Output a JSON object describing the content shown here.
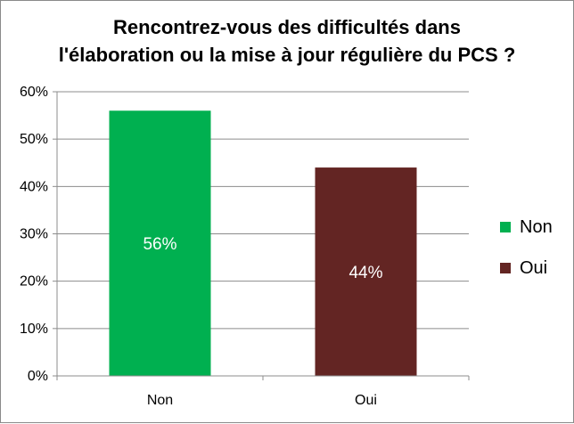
{
  "chart_data": {
    "type": "bar",
    "title": "Rencontrez-vous des difficultés dans\nl'élaboration ou la mise à jour régulière du PCS ?",
    "categories": [
      "Non",
      "Oui"
    ],
    "values": [
      56,
      44
    ],
    "data_labels": [
      "56%",
      "44%"
    ],
    "colors": [
      "#00b050",
      "#632523"
    ],
    "ylim": [
      0,
      60
    ],
    "y_ticks": [
      0,
      10,
      20,
      30,
      40,
      50,
      60
    ],
    "y_tick_labels": [
      "0%",
      "10%",
      "20%",
      "30%",
      "40%",
      "50%",
      "60%"
    ],
    "grid": true,
    "legend": {
      "placement": "right",
      "entries": [
        {
          "label": "Non",
          "color": "#00b050"
        },
        {
          "label": "Oui",
          "color": "#632523"
        }
      ]
    }
  }
}
